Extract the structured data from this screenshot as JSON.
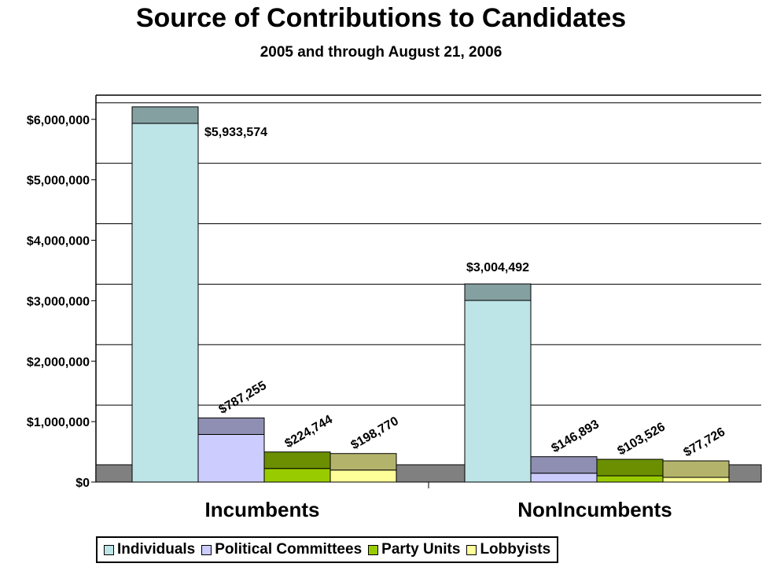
{
  "chart_data": {
    "type": "bar",
    "title": "Source of Contributions to Candidates",
    "subtitle": "2005 and through August 21, 2006",
    "categories": [
      "Incumbents",
      "NonIncumbents"
    ],
    "series": [
      {
        "name": "Individuals",
        "color": "#bde4e6",
        "values": [
          5933574,
          3004492
        ],
        "labels": [
          "$5,933,574",
          "$3,004,492"
        ]
      },
      {
        "name": "Political Committees",
        "color": "#ccccff",
        "values": [
          787255,
          146893
        ],
        "labels": [
          "$787,255",
          "$146,893"
        ]
      },
      {
        "name": "Party Units",
        "color": "#99cc00",
        "values": [
          224744,
          103526
        ],
        "labels": [
          "$224,744",
          "$103,526"
        ]
      },
      {
        "name": "Lobbyists",
        "color": "#ffff99",
        "values": [
          198770,
          77726
        ],
        "labels": [
          "$198,770",
          "$77,726"
        ]
      }
    ],
    "ylim": [
      0,
      6400000
    ],
    "yticks": [
      0,
      1000000,
      2000000,
      3000000,
      4000000,
      5000000,
      6000000
    ],
    "ytick_labels": [
      "$0",
      "$1,000,000",
      "$2,000,000",
      "$3,000,000",
      "$4,000,000",
      "$5,000,000",
      "$6,000,000"
    ],
    "xlabel": "",
    "ylabel": "",
    "grid": true,
    "legend_position": "bottom"
  }
}
